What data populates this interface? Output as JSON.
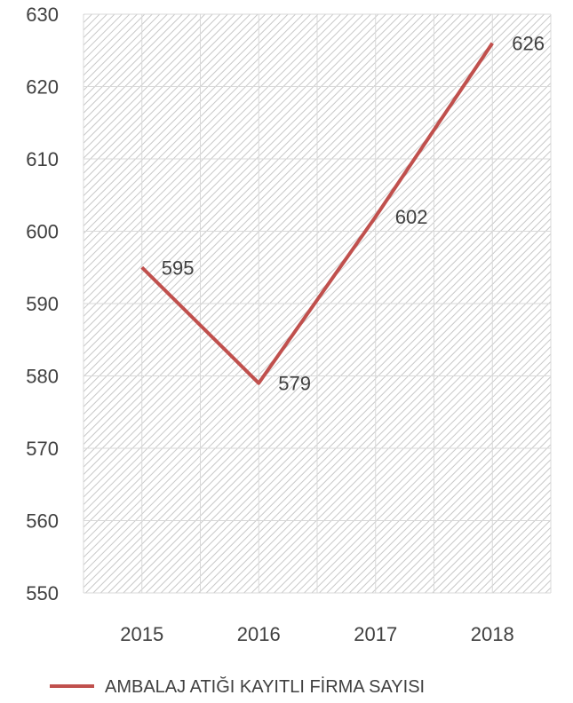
{
  "chart_data": {
    "type": "line",
    "categories": [
      "2015",
      "2016",
      "2017",
      "2018"
    ],
    "series": [
      {
        "name": "AMBALAJ ATIĞI KAYITLI FİRMA SAYISI",
        "values": [
          595,
          579,
          602,
          626
        ],
        "color": "#C0504D"
      }
    ],
    "ylim": [
      550,
      630
    ],
    "yticks": [
      550,
      560,
      570,
      580,
      590,
      600,
      610,
      620,
      630
    ],
    "title": "",
    "xlabel": "",
    "ylabel": "",
    "grid": true,
    "plot_fill": "diagonal-hatch",
    "legend": "bottom",
    "data_labels": [
      "595",
      "579",
      "602",
      "626"
    ]
  }
}
